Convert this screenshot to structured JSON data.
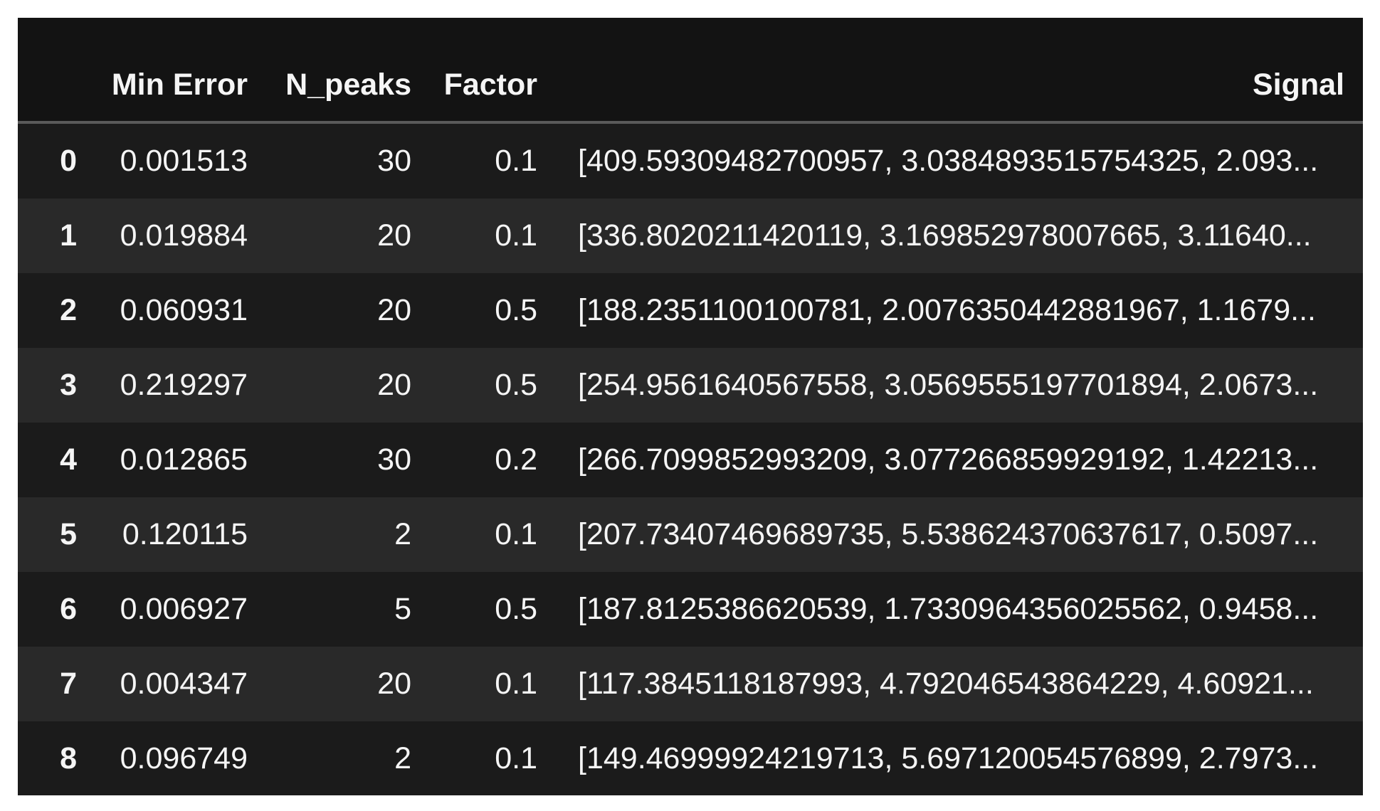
{
  "colors": {
    "page_background": "#ffffff",
    "table_background": "#131313",
    "row_even": "#1b1b1b",
    "row_odd": "#292929",
    "header_separator": "#5a5a5a",
    "text": "#f5f5f5"
  },
  "table": {
    "columns": [
      {
        "key": "index",
        "label": ""
      },
      {
        "key": "min_error",
        "label": "Min Error"
      },
      {
        "key": "n_peaks",
        "label": "N_peaks"
      },
      {
        "key": "factor",
        "label": "Factor"
      },
      {
        "key": "signal",
        "label": "Signal"
      }
    ],
    "rows": [
      {
        "index": "0",
        "min_error": "0.001513",
        "n_peaks": "30",
        "factor": "0.1",
        "signal": "[409.59309482700957, 3.0384893515754325, 2.093..."
      },
      {
        "index": "1",
        "min_error": "0.019884",
        "n_peaks": "20",
        "factor": "0.1",
        "signal": "[336.8020211420119, 3.169852978007665, 3.11640..."
      },
      {
        "index": "2",
        "min_error": "0.060931",
        "n_peaks": "20",
        "factor": "0.5",
        "signal": "[188.2351100100781, 2.0076350442881967, 1.1679..."
      },
      {
        "index": "3",
        "min_error": "0.219297",
        "n_peaks": "20",
        "factor": "0.5",
        "signal": "[254.9561640567558, 3.0569555197701894, 2.0673..."
      },
      {
        "index": "4",
        "min_error": "0.012865",
        "n_peaks": "30",
        "factor": "0.2",
        "signal": "[266.7099852993209, 3.077266859929192, 1.42213..."
      },
      {
        "index": "5",
        "min_error": "0.120115",
        "n_peaks": "2",
        "factor": "0.1",
        "signal": "[207.73407469689735, 5.538624370637617, 0.5097..."
      },
      {
        "index": "6",
        "min_error": "0.006927",
        "n_peaks": "5",
        "factor": "0.5",
        "signal": "[187.8125386620539, 1.7330964356025562, 0.9458..."
      },
      {
        "index": "7",
        "min_error": "0.004347",
        "n_peaks": "20",
        "factor": "0.1",
        "signal": "[117.3845118187993, 4.792046543864229, 4.60921..."
      },
      {
        "index": "8",
        "min_error": "0.096749",
        "n_peaks": "2",
        "factor": "0.1",
        "signal": "[149.46999924219713, 5.697120054576899, 2.7973..."
      }
    ]
  }
}
